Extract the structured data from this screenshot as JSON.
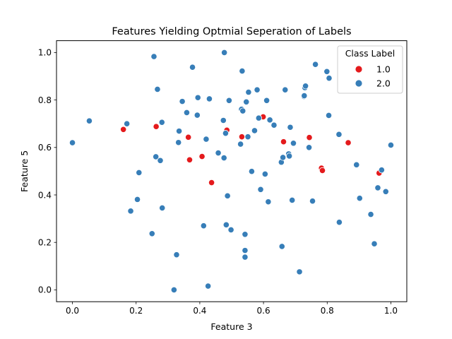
{
  "chart_data": {
    "type": "scatter",
    "title": "Features Yielding Optmial Seperation of Labels",
    "xlabel": "Feature 3",
    "ylabel": "Feature 5",
    "xlim": [
      -0.05,
      1.05
    ],
    "ylim": [
      -0.05,
      1.05
    ],
    "xticks": [
      "0.0",
      "0.2",
      "0.4",
      "0.6",
      "0.8",
      "1.0"
    ],
    "yticks": [
      "0.0",
      "0.2",
      "0.4",
      "0.6",
      "0.8",
      "1.0"
    ],
    "grid": false,
    "legend": {
      "title": "Class Label",
      "placement": "top-right"
    },
    "series": [
      {
        "name": "1.0",
        "color": "#e41a1c",
        "points": [
          [
            0.16,
            0.676
          ],
          [
            0.263,
            0.688
          ],
          [
            0.364,
            0.643
          ],
          [
            0.368,
            0.548
          ],
          [
            0.407,
            0.562
          ],
          [
            0.437,
            0.452
          ],
          [
            0.485,
            0.673
          ],
          [
            0.532,
            0.645
          ],
          [
            0.599,
            0.729
          ],
          [
            0.663,
            0.624
          ],
          [
            0.744,
            0.642
          ],
          [
            0.782,
            0.513
          ],
          [
            0.785,
            0.503
          ],
          [
            0.866,
            0.62
          ],
          [
            0.963,
            0.492
          ]
        ]
      },
      {
        "name": "2.0",
        "color": "#377eb8",
        "points": [
          [
            0.0,
            0.62
          ],
          [
            0.053,
            0.712
          ],
          [
            0.171,
            0.7
          ],
          [
            0.183,
            0.332
          ],
          [
            0.204,
            0.381
          ],
          [
            0.209,
            0.494
          ],
          [
            0.25,
            0.237
          ],
          [
            0.256,
            0.983
          ],
          [
            0.262,
            0.561
          ],
          [
            0.267,
            0.845
          ],
          [
            0.276,
            0.545
          ],
          [
            0.281,
            0.706
          ],
          [
            0.282,
            0.345
          ],
          [
            0.319,
            0.0
          ],
          [
            0.327,
            0.148
          ],
          [
            0.333,
            0.621
          ],
          [
            0.335,
            0.669
          ],
          [
            0.345,
            0.794
          ],
          [
            0.359,
            0.747
          ],
          [
            0.377,
            0.938
          ],
          [
            0.392,
            0.736
          ],
          [
            0.394,
            0.81
          ],
          [
            0.412,
            0.27
          ],
          [
            0.42,
            0.635
          ],
          [
            0.426,
            0.016
          ],
          [
            0.43,
            0.805
          ],
          [
            0.458,
            0.577
          ],
          [
            0.474,
            0.714
          ],
          [
            0.476,
            0.556
          ],
          [
            0.477,
            1.0
          ],
          [
            0.481,
            0.66
          ],
          [
            0.483,
            0.274
          ],
          [
            0.487,
            0.396
          ],
          [
            0.492,
            0.798
          ],
          [
            0.498,
            0.253
          ],
          [
            0.528,
            0.614
          ],
          [
            0.531,
            0.761
          ],
          [
            0.533,
            0.922
          ],
          [
            0.535,
            0.754
          ],
          [
            0.542,
            0.234
          ],
          [
            0.542,
            0.166
          ],
          [
            0.542,
            0.138
          ],
          [
            0.546,
            0.792
          ],
          [
            0.551,
            0.645
          ],
          [
            0.553,
            0.833
          ],
          [
            0.563,
            0.499
          ],
          [
            0.572,
            0.671
          ],
          [
            0.58,
            0.843
          ],
          [
            0.585,
            0.724
          ],
          [
            0.591,
            0.423
          ],
          [
            0.605,
            0.488
          ],
          [
            0.61,
            0.798
          ],
          [
            0.615,
            0.371
          ],
          [
            0.62,
            0.716
          ],
          [
            0.633,
            0.694
          ],
          [
            0.656,
            0.538
          ],
          [
            0.658,
            0.183
          ],
          [
            0.661,
            0.558
          ],
          [
            0.668,
            0.843
          ],
          [
            0.679,
            0.573
          ],
          [
            0.681,
            0.564
          ],
          [
            0.684,
            0.685
          ],
          [
            0.69,
            0.378
          ],
          [
            0.694,
            0.618
          ],
          [
            0.713,
            0.076
          ],
          [
            0.727,
            0.815
          ],
          [
            0.728,
            0.818
          ],
          [
            0.73,
            0.852
          ],
          [
            0.732,
            0.859
          ],
          [
            0.743,
            0.6
          ],
          [
            0.754,
            0.374
          ],
          [
            0.763,
            0.95
          ],
          [
            0.799,
            0.92
          ],
          [
            0.805,
            0.735
          ],
          [
            0.806,
            0.892
          ],
          [
            0.837,
            0.655
          ],
          [
            0.838,
            0.285
          ],
          [
            0.892,
            0.527
          ],
          [
            0.902,
            0.386
          ],
          [
            0.937,
            0.318
          ],
          [
            0.948,
            0.194
          ],
          [
            0.959,
            0.43
          ],
          [
            0.971,
            0.505
          ],
          [
            0.984,
            0.414
          ],
          [
            1.0,
            0.61
          ]
        ]
      }
    ]
  }
}
